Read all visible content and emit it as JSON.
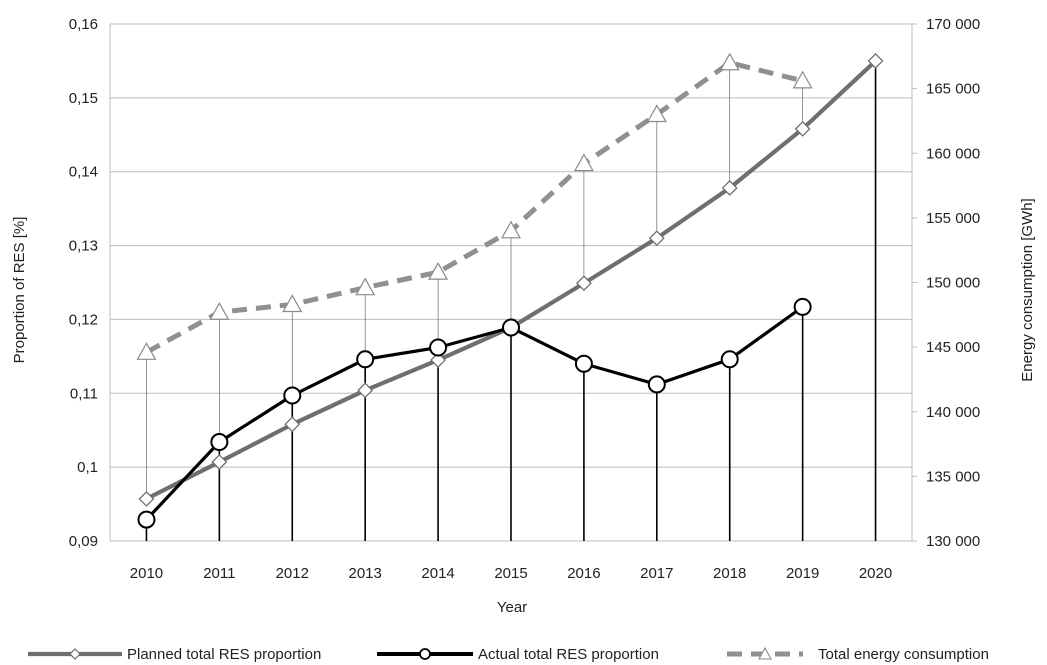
{
  "chart_data": {
    "type": "line",
    "xlabel": "Year",
    "ylabel_left": "Proportion of RES [%]",
    "ylabel_right": "Energy consumption [GWh]",
    "categories": [
      "2010",
      "2011",
      "2012",
      "2013",
      "2014",
      "2015",
      "2016",
      "2017",
      "2018",
      "2019",
      "2020"
    ],
    "ylim_left": [
      0.09,
      0.16
    ],
    "yticks_left": [
      "0,09",
      "0,1",
      "0,11",
      "0,12",
      "0,13",
      "0,14",
      "0,15",
      "0,16"
    ],
    "ylim_right": [
      130000,
      170000
    ],
    "yticks_right": [
      "130 000",
      "135 000",
      "140 000",
      "145 000",
      "150 000",
      "155 000",
      "160 000",
      "165 000",
      "170 000"
    ],
    "grid": true,
    "legend_position": "bottom",
    "series": [
      {
        "name": "Planned total RES proportion",
        "axis": "left",
        "color": "#6f6f6f",
        "marker": "diamond",
        "values": [
          0.0957,
          0.1007,
          0.1058,
          0.1104,
          0.1145,
          0.1189,
          0.1249,
          0.131,
          0.1378,
          0.1458,
          0.155
        ]
      },
      {
        "name": "Actual total RES proportion",
        "axis": "left",
        "color": "#000000",
        "marker": "circle",
        "values": [
          0.0929,
          0.1034,
          0.1097,
          0.1146,
          0.1162,
          0.1189,
          0.114,
          0.1112,
          0.1146,
          0.1217,
          null
        ]
      },
      {
        "name": "Total energy consumption",
        "axis": "right",
        "color": "#909090",
        "marker": "triangle",
        "dashed": true,
        "values": [
          144600,
          147700,
          148300,
          149600,
          150800,
          154000,
          159200,
          163000,
          167000,
          165600,
          null
        ]
      }
    ]
  }
}
